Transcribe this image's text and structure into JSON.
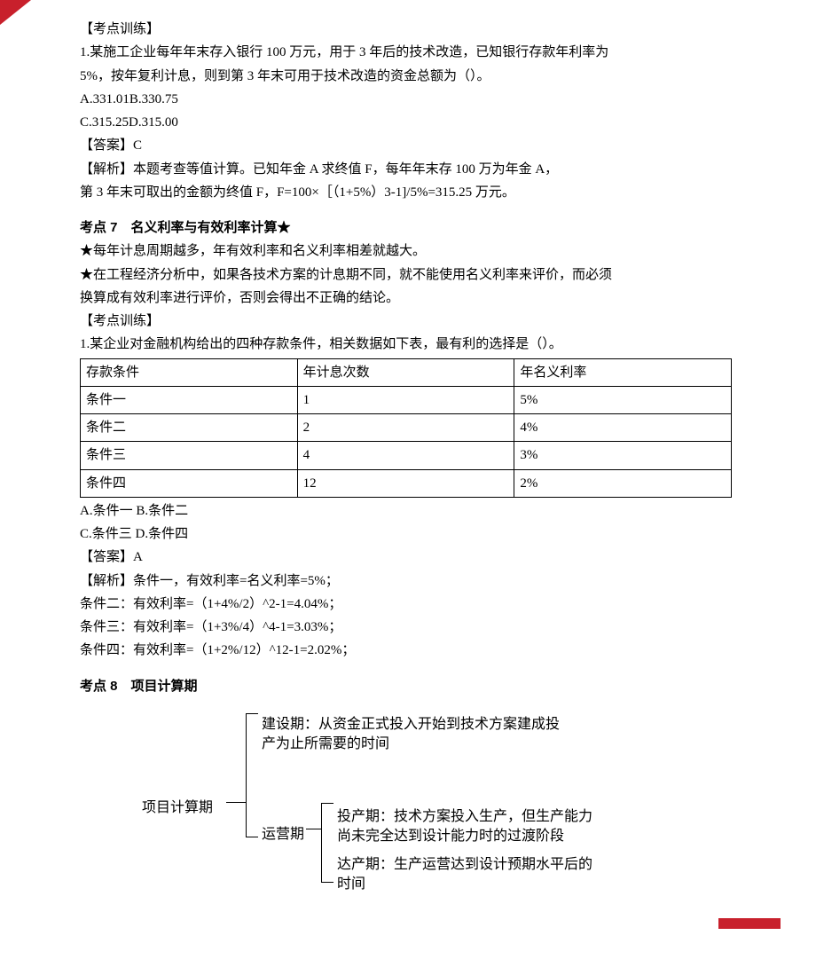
{
  "section1": {
    "heading": "【考点训练】",
    "q1_line1": "1.某施工企业每年年末存入银行 100 万元，用于 3 年后的技术改造，已知银行存款年利率为",
    "q1_line2": "5%，按年复利计息，则到第 3 年末可用于技术改造的资金总额为（）。",
    "opt1": "A.331.01B.330.75",
    "opt2": "C.315.25D.315.00",
    "ans": "【答案】C",
    "exp1": "【解析】本题考查等值计算。已知年金 A 求终值 F，每年年末存 100 万为年金 A，",
    "exp2": "第 3 年末可取出的金额为终值 F，F=100×［（1+5%）3-1]/5%=315.25 万元。"
  },
  "section2": {
    "title": "考点 7　名义利率与有效利率计算★",
    "star1": "★每年计息周期越多，年有效利率和名义利率相差就越大。",
    "star2a": "★在工程经济分析中，如果各技术方案的计息期不同，就不能使用名义利率来评价，而必须",
    "star2b": "换算成有效利率进行评价，否则会得出不正确的结论。",
    "heading": "【考点训练】",
    "q1": "1.某企业对金融机构给出的四种存款条件，相关数据如下表，最有利的选择是（）。",
    "table": {
      "headers": [
        "存款条件",
        "年计息次数",
        "年名义利率"
      ],
      "rows": [
        [
          "条件一",
          "1",
          "5%"
        ],
        [
          "条件二",
          "2",
          "4%"
        ],
        [
          "条件三",
          "4",
          "3%"
        ],
        [
          "条件四",
          "12",
          "2%"
        ]
      ]
    },
    "opt1": "A.条件一 B.条件二",
    "opt2": "C.条件三 D.条件四",
    "ans": "【答案】A",
    "exp1": "【解析】条件一，有效利率=名义利率=5%；",
    "exp2": "条件二：有效利率=（1+4%/2）^2-1=4.04%；",
    "exp3": "条件三：有效利率=（1+3%/4）^4-1=3.03%；",
    "exp4": "条件四：有效利率=（1+2%/12）^12-1=2.02%；"
  },
  "section3": {
    "title": "考点 8　项目计算期",
    "diagram": {
      "root": "项目计算期",
      "branch1": "建设期：从资金正式投入开始到技术方案建成投产为止所需要的时间",
      "branch2": "运营期",
      "branch2a": "投产期：技术方案投入生产，但生产能力尚未完全达到设计能力时的过渡阶段",
      "branch2b": "达产期：生产运营达到设计预期水平后的时间"
    }
  }
}
